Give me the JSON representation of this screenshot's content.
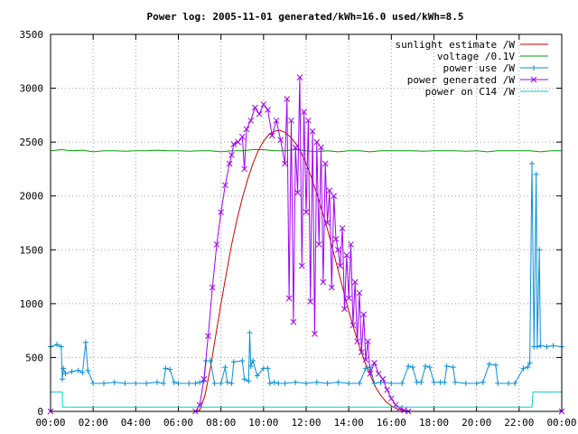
{
  "chart_data": {
    "type": "line",
    "title": "Power log: 2005-11-01 generated/kWh=16.0 used/kWh=8.5",
    "xlabel": "",
    "ylabel": "",
    "xlim": [
      0,
      24
    ],
    "ylim": [
      0,
      3500
    ],
    "x_ticks": [
      "00:00",
      "02:00",
      "04:00",
      "06:00",
      "08:00",
      "10:00",
      "12:00",
      "14:00",
      "16:00",
      "18:00",
      "20:00",
      "22:00",
      "00:00"
    ],
    "y_ticks": [
      0,
      500,
      1000,
      1500,
      2000,
      2500,
      3000,
      3500
    ],
    "grid": true,
    "legend_position": "top-right",
    "series": [
      {
        "name": "sunlight estimate /W",
        "color": "#cc0000",
        "marker": "none",
        "points": [
          [
            0,
            0
          ],
          [
            6.8,
            0
          ],
          [
            7.0,
            10
          ],
          [
            7.25,
            150
          ],
          [
            7.5,
            400
          ],
          [
            7.75,
            700
          ],
          [
            8.0,
            1000
          ],
          [
            8.25,
            1280
          ],
          [
            8.5,
            1550
          ],
          [
            8.75,
            1780
          ],
          [
            9.0,
            1980
          ],
          [
            9.25,
            2150
          ],
          [
            9.5,
            2300
          ],
          [
            9.75,
            2420
          ],
          [
            10.0,
            2510
          ],
          [
            10.25,
            2570
          ],
          [
            10.5,
            2600
          ],
          [
            10.75,
            2610
          ],
          [
            11.0,
            2590
          ],
          [
            11.25,
            2550
          ],
          [
            11.5,
            2490
          ],
          [
            11.75,
            2410
          ],
          [
            12.0,
            2300
          ],
          [
            12.25,
            2170
          ],
          [
            12.5,
            2020
          ],
          [
            12.75,
            1860
          ],
          [
            13.0,
            1690
          ],
          [
            13.25,
            1500
          ],
          [
            13.5,
            1310
          ],
          [
            13.75,
            1120
          ],
          [
            14.0,
            930
          ],
          [
            14.25,
            760
          ],
          [
            14.5,
            600
          ],
          [
            14.75,
            460
          ],
          [
            15.0,
            340
          ],
          [
            15.25,
            230
          ],
          [
            15.5,
            150
          ],
          [
            15.75,
            90
          ],
          [
            16.0,
            50
          ],
          [
            16.25,
            25
          ],
          [
            16.5,
            10
          ],
          [
            16.75,
            0
          ],
          [
            24,
            0
          ]
        ]
      },
      {
        "name": "voltage /0.1V",
        "color": "#00a000",
        "marker": "none",
        "points": [
          [
            0,
            2420
          ],
          [
            0.5,
            2430
          ],
          [
            1,
            2420
          ],
          [
            1.5,
            2425
          ],
          [
            2,
            2410
          ],
          [
            2.5,
            2420
          ],
          [
            3,
            2420
          ],
          [
            3.5,
            2415
          ],
          [
            4,
            2420
          ],
          [
            4.5,
            2420
          ],
          [
            5,
            2425
          ],
          [
            5.5,
            2420
          ],
          [
            6,
            2420
          ],
          [
            6.5,
            2415
          ],
          [
            7,
            2420
          ],
          [
            7.5,
            2420
          ],
          [
            8,
            2410
          ],
          [
            8.5,
            2420
          ],
          [
            9,
            2420
          ],
          [
            9.5,
            2430
          ],
          [
            10,
            2430
          ],
          [
            10.5,
            2420
          ],
          [
            11,
            2420
          ],
          [
            11.5,
            2430
          ],
          [
            12,
            2420
          ],
          [
            12.5,
            2410
          ],
          [
            13,
            2420
          ],
          [
            13.5,
            2410
          ],
          [
            14,
            2420
          ],
          [
            14.5,
            2420
          ],
          [
            15,
            2410
          ],
          [
            15.5,
            2420
          ],
          [
            16,
            2420
          ],
          [
            16.5,
            2420
          ],
          [
            17,
            2420
          ],
          [
            17.5,
            2415
          ],
          [
            18,
            2420
          ],
          [
            18.5,
            2420
          ],
          [
            19,
            2420
          ],
          [
            19.5,
            2415
          ],
          [
            20,
            2420
          ],
          [
            20.5,
            2410
          ],
          [
            21,
            2420
          ],
          [
            21.5,
            2420
          ],
          [
            22,
            2420
          ],
          [
            22.5,
            2420
          ],
          [
            23,
            2410
          ],
          [
            23.5,
            2420
          ],
          [
            24,
            2420
          ]
        ]
      },
      {
        "name": "power use /W",
        "color": "#0a8fd8",
        "marker": "plus",
        "points": [
          [
            0,
            600
          ],
          [
            0.3,
            620
          ],
          [
            0.5,
            600
          ],
          [
            0.55,
            300
          ],
          [
            0.6,
            400
          ],
          [
            0.7,
            350
          ],
          [
            1,
            370
          ],
          [
            1.3,
            380
          ],
          [
            1.5,
            360
          ],
          [
            1.65,
            640
          ],
          [
            1.75,
            380
          ],
          [
            2,
            260
          ],
          [
            2.5,
            260
          ],
          [
            3,
            270
          ],
          [
            3.5,
            260
          ],
          [
            4,
            260
          ],
          [
            4.5,
            260
          ],
          [
            5,
            270
          ],
          [
            5.3,
            260
          ],
          [
            5.4,
            400
          ],
          [
            5.6,
            390
          ],
          [
            5.8,
            270
          ],
          [
            6,
            260
          ],
          [
            6.5,
            260
          ],
          [
            6.8,
            260
          ],
          [
            7,
            270
          ],
          [
            7.2,
            280
          ],
          [
            7.3,
            470
          ],
          [
            7.5,
            470
          ],
          [
            7.7,
            260
          ],
          [
            8,
            260
          ],
          [
            8.2,
            410
          ],
          [
            8.3,
            270
          ],
          [
            8.5,
            260
          ],
          [
            8.6,
            460
          ],
          [
            9,
            470
          ],
          [
            9.1,
            300
          ],
          [
            9.3,
            280
          ],
          [
            9.35,
            730
          ],
          [
            9.4,
            420
          ],
          [
            9.5,
            470
          ],
          [
            9.7,
            330
          ],
          [
            10,
            400
          ],
          [
            10.2,
            400
          ],
          [
            10.3,
            260
          ],
          [
            10.5,
            270
          ],
          [
            10.7,
            260
          ],
          [
            11,
            260
          ],
          [
            11.5,
            270
          ],
          [
            12,
            260
          ],
          [
            12.5,
            270
          ],
          [
            13,
            260
          ],
          [
            13.5,
            270
          ],
          [
            14,
            260
          ],
          [
            14.5,
            260
          ],
          [
            14.8,
            400
          ],
          [
            15,
            410
          ],
          [
            15.2,
            260
          ],
          [
            15.5,
            270
          ],
          [
            16,
            260
          ],
          [
            16.5,
            260
          ],
          [
            16.8,
            420
          ],
          [
            17,
            410
          ],
          [
            17.2,
            270
          ],
          [
            17.4,
            270
          ],
          [
            17.6,
            420
          ],
          [
            17.8,
            410
          ],
          [
            18,
            270
          ],
          [
            18.3,
            270
          ],
          [
            18.5,
            270
          ],
          [
            18.6,
            420
          ],
          [
            18.9,
            410
          ],
          [
            19,
            270
          ],
          [
            19.5,
            260
          ],
          [
            20,
            260
          ],
          [
            20.3,
            270
          ],
          [
            20.6,
            440
          ],
          [
            20.9,
            430
          ],
          [
            21,
            260
          ],
          [
            21.5,
            260
          ],
          [
            21.8,
            260
          ],
          [
            22.2,
            400
          ],
          [
            22.4,
            410
          ],
          [
            22.5,
            450
          ],
          [
            22.6,
            2300
          ],
          [
            22.7,
            600
          ],
          [
            22.8,
            2200
          ],
          [
            22.85,
            600
          ],
          [
            22.95,
            1500
          ],
          [
            23,
            610
          ],
          [
            23.3,
            600
          ],
          [
            23.6,
            610
          ],
          [
            24,
            600
          ]
        ]
      },
      {
        "name": "power generated /W",
        "color": "#a000f0",
        "marker": "x",
        "points": [
          [
            0,
            0
          ],
          [
            6.8,
            0
          ],
          [
            7.0,
            60
          ],
          [
            7.2,
            300
          ],
          [
            7.4,
            700
          ],
          [
            7.6,
            1150
          ],
          [
            7.8,
            1550
          ],
          [
            8.0,
            1850
          ],
          [
            8.2,
            2100
          ],
          [
            8.4,
            2300
          ],
          [
            8.5,
            2380
          ],
          [
            8.6,
            2480
          ],
          [
            8.8,
            2500
          ],
          [
            9.0,
            2550
          ],
          [
            9.1,
            2250
          ],
          [
            9.2,
            2620
          ],
          [
            9.4,
            2700
          ],
          [
            9.6,
            2820
          ],
          [
            9.8,
            2760
          ],
          [
            10.0,
            2850
          ],
          [
            10.2,
            2800
          ],
          [
            10.4,
            2560
          ],
          [
            10.6,
            2700
          ],
          [
            10.8,
            2520
          ],
          [
            11.0,
            2300
          ],
          [
            11.1,
            2900
          ],
          [
            11.2,
            1050
          ],
          [
            11.3,
            2700
          ],
          [
            11.4,
            830
          ],
          [
            11.5,
            2450
          ],
          [
            11.6,
            2030
          ],
          [
            11.7,
            3100
          ],
          [
            11.8,
            1350
          ],
          [
            11.9,
            2780
          ],
          [
            12.0,
            1850
          ],
          [
            12.1,
            2700
          ],
          [
            12.2,
            1020
          ],
          [
            12.3,
            2600
          ],
          [
            12.4,
            720
          ],
          [
            12.5,
            2500
          ],
          [
            12.6,
            1550
          ],
          [
            12.7,
            2450
          ],
          [
            12.8,
            1200
          ],
          [
            12.9,
            2300
          ],
          [
            13.0,
            1750
          ],
          [
            13.1,
            2050
          ],
          [
            13.2,
            1150
          ],
          [
            13.3,
            2000
          ],
          [
            13.4,
            1600
          ],
          [
            13.5,
            1500
          ],
          [
            13.6,
            1350
          ],
          [
            13.7,
            1700
          ],
          [
            13.8,
            950
          ],
          [
            13.9,
            1450
          ],
          [
            14.0,
            1050
          ],
          [
            14.1,
            1550
          ],
          [
            14.2,
            800
          ],
          [
            14.3,
            1200
          ],
          [
            14.4,
            650
          ],
          [
            14.5,
            1100
          ],
          [
            14.6,
            550
          ],
          [
            14.7,
            900
          ],
          [
            14.8,
            480
          ],
          [
            14.9,
            650
          ],
          [
            15.0,
            350
          ],
          [
            15.2,
            450
          ],
          [
            15.4,
            350
          ],
          [
            15.6,
            300
          ],
          [
            15.8,
            200
          ],
          [
            16.0,
            120
          ],
          [
            16.2,
            60
          ],
          [
            16.4,
            30
          ],
          [
            16.6,
            10
          ],
          [
            16.8,
            0
          ],
          [
            24,
            0
          ]
        ]
      },
      {
        "name": "power on C14 /W",
        "color": "#00d0d0",
        "marker": "none",
        "points": [
          [
            0,
            180
          ],
          [
            0.55,
            180
          ],
          [
            0.56,
            40
          ],
          [
            6.5,
            40
          ],
          [
            8,
            40
          ],
          [
            12,
            40
          ],
          [
            16,
            40
          ],
          [
            20,
            40
          ],
          [
            22.6,
            40
          ],
          [
            22.65,
            180
          ],
          [
            24,
            180
          ]
        ]
      }
    ]
  }
}
